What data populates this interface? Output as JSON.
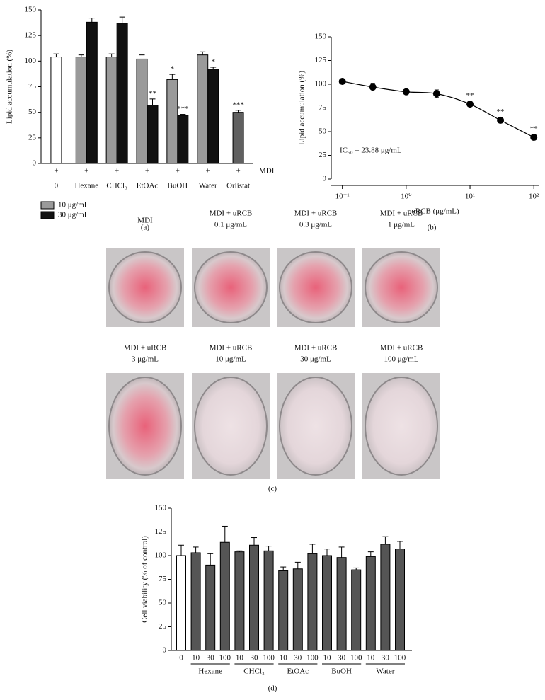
{
  "chart_data": [
    {
      "type": "bar",
      "panel": "(a)",
      "ylabel": "Lipid accumulation (%)",
      "categories": [
        "0",
        "Hexane",
        "CHCl₃",
        "EtOAc",
        "BuOH",
        "Water",
        "Orlistat"
      ],
      "treatment": {
        "label": "MDI",
        "marks": [
          "+",
          "+",
          "+",
          "+",
          "+",
          "+",
          "+"
        ]
      },
      "series": [
        {
          "color": "#ffffff",
          "values": [
            104,
            null,
            null,
            null,
            null,
            null,
            null
          ],
          "errors": [
            3,
            null,
            null,
            null,
            null,
            null,
            null
          ],
          "stars": [
            null,
            null,
            null,
            null,
            null,
            null,
            null
          ]
        },
        {
          "name": "10 μg/mL",
          "color": "#9a9a9a",
          "values": [
            null,
            104,
            104,
            102,
            82,
            106,
            null
          ],
          "errors": [
            null,
            2,
            3,
            4,
            5,
            3,
            null
          ],
          "stars": [
            null,
            null,
            null,
            null,
            "*",
            null,
            null
          ]
        },
        {
          "name": "30 μg/mL",
          "color": "#111111",
          "values": [
            null,
            138,
            137,
            57,
            47,
            92,
            null
          ],
          "errors": [
            null,
            4,
            6,
            6,
            1,
            2,
            null
          ],
          "stars": [
            null,
            null,
            null,
            "**",
            "***",
            "*",
            null
          ]
        },
        {
          "color": "#606060",
          "values": [
            null,
            null,
            null,
            null,
            null,
            null,
            50
          ],
          "errors": [
            null,
            null,
            null,
            null,
            null,
            null,
            2
          ],
          "stars": [
            null,
            null,
            null,
            null,
            null,
            null,
            "***"
          ]
        }
      ],
      "ylim": [
        0,
        150
      ],
      "yticks": [
        0,
        25,
        50,
        75,
        100,
        125,
        150
      ]
    },
    {
      "type": "scatter",
      "panel": "(b)",
      "ylabel": "Lipid accumulation (%)",
      "xlabel": "uRCB (μg/mL)",
      "annotation": "IC₅₀ = 23.88 μg/mL",
      "log_x": true,
      "color": "#000000",
      "x": [
        0.1,
        0.3,
        1,
        3,
        10,
        30,
        100
      ],
      "values": [
        103,
        97,
        92,
        90,
        79,
        62,
        44
      ],
      "errors": [
        2,
        4,
        2,
        4,
        2,
        2,
        2
      ],
      "stars": [
        null,
        null,
        null,
        null,
        "**",
        "**",
        "**"
      ],
      "xlim": [
        0.067,
        122
      ],
      "xticks": [
        {
          "value": 0.1,
          "label": "10⁻¹"
        },
        {
          "value": 1,
          "label": "10⁰"
        },
        {
          "value": 10,
          "label": "10¹"
        },
        {
          "value": 100,
          "label": "10²"
        }
      ],
      "ylim": [
        0,
        150
      ],
      "yticks": [
        0,
        25,
        50,
        75,
        100,
        125,
        150
      ]
    },
    {
      "type": "bar",
      "panel": "(d)",
      "ylabel": "Cell viability (% of control)",
      "categories": [
        "0",
        "10",
        "30",
        "100",
        "10",
        "30",
        "100",
        "10",
        "30",
        "100",
        "10",
        "30",
        "100",
        "10",
        "30",
        "100"
      ],
      "groups": [
        "Hexane",
        "CHCl₃",
        "EtOAc",
        "BuOH",
        "Water"
      ],
      "values": [
        100,
        103,
        90,
        114,
        104,
        111,
        105,
        84,
        86,
        102,
        100,
        98,
        85,
        99,
        112,
        107
      ],
      "errors": [
        11,
        6,
        12,
        17,
        1,
        8,
        5,
        4,
        7,
        10,
        7,
        11,
        2,
        5,
        8,
        8
      ],
      "colors": [
        "#ffffff",
        "#555555",
        "#555555",
        "#555555",
        "#555555",
        "#555555",
        "#555555",
        "#555555",
        "#555555",
        "#555555",
        "#555555",
        "#555555",
        "#555555",
        "#555555",
        "#555555",
        "#555555"
      ],
      "ylim": [
        0,
        150
      ],
      "yticks": [
        0,
        25,
        50,
        75,
        100,
        125,
        150
      ]
    }
  ],
  "photo_panel": {
    "panel": "(c)",
    "captions": [
      [
        "MDI"
      ],
      [
        "MDI + uRCB",
        "0.1 μg/mL"
      ],
      [
        "MDI + uRCB",
        "0.3 μg/mL"
      ],
      [
        "MDI + uRCB",
        "1 μg/mL"
      ],
      [
        "MDI + uRCB",
        "3 μg/mL"
      ],
      [
        "MDI + uRCB",
        "10 μg/mL"
      ],
      [
        "MDI + uRCB",
        "30 μg/mL"
      ],
      [
        "MDI + uRCB",
        "100 μg/mL"
      ]
    ]
  }
}
